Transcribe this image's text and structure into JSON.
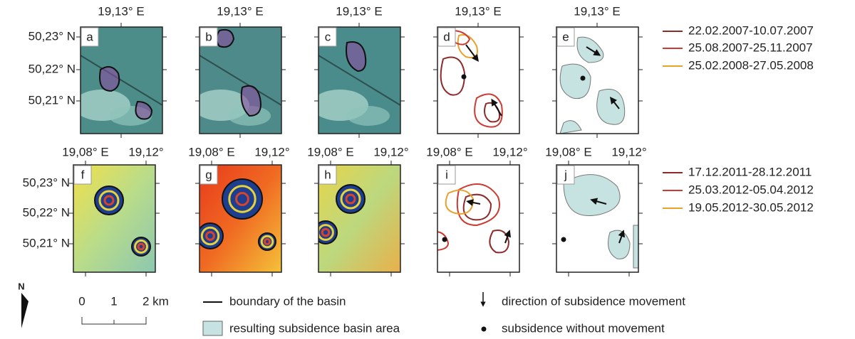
{
  "rows": [
    {
      "lat_labels": [
        "50,23° N",
        "50,22° N",
        "50,21° N"
      ],
      "panels": [
        {
          "letter": "a",
          "lon_labels": [
            "19,13° E"
          ]
        },
        {
          "letter": "b",
          "lon_labels": [
            "19,13° E"
          ]
        },
        {
          "letter": "c",
          "lon_labels": [
            "19,13° E"
          ]
        },
        {
          "letter": "d",
          "lon_labels": [
            "19,13° E"
          ]
        },
        {
          "letter": "e",
          "lon_labels": [
            "19,13° E"
          ]
        }
      ],
      "legend": [
        {
          "label": "22.02.2007-10.07.2007",
          "color": "#8e2a2a"
        },
        {
          "label": "25.08.2007-25.11.2007",
          "color": "#cc3b33"
        },
        {
          "label": "25.02.2008-27.05.2008",
          "color": "#e8a22c"
        }
      ]
    },
    {
      "lat_labels": [
        "50,23° N",
        "50,22° N",
        "50,21° N"
      ],
      "panels": [
        {
          "letter": "f",
          "lon_labels": [
            "19,08° E",
            "19,12°"
          ]
        },
        {
          "letter": "g",
          "lon_labels": [
            "19,08° E",
            "19,12°"
          ]
        },
        {
          "letter": "h",
          "lon_labels": [
            "19,08° E",
            "19,12°"
          ]
        },
        {
          "letter": "i",
          "lon_labels": [
            "19,08° E",
            "19,12°"
          ]
        },
        {
          "letter": "j",
          "lon_labels": [
            "19,08° E",
            "19,12°"
          ]
        }
      ],
      "legend": [
        {
          "label": "17.12.2011-28.12.2011",
          "color": "#8e2a2a"
        },
        {
          "label": "25.03.2012-05.04.2012",
          "color": "#cc3b33"
        },
        {
          "label": "19.05.2012-30.05.2012",
          "color": "#e8a22c"
        }
      ]
    }
  ],
  "key": {
    "north": "N",
    "scale": [
      "0",
      "1",
      "2 km"
    ],
    "boundary": "boundary of the basin",
    "basin_area": "resulting subsidence basin area",
    "direction": "direction of subsidence movement",
    "no_movement": "subsidence without movement"
  }
}
